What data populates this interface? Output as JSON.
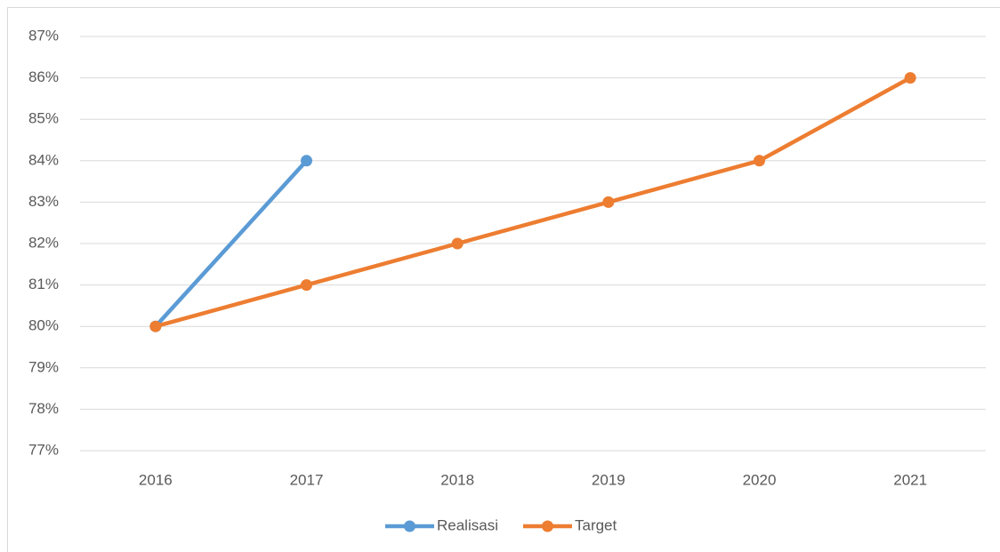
{
  "chart_data": {
    "type": "line",
    "categories": [
      "2016",
      "2017",
      "2018",
      "2019",
      "2020",
      "2021"
    ],
    "series": [
      {
        "name": "Realisasi",
        "color": "#5b9bd5",
        "values": [
          80,
          84,
          null,
          null,
          null,
          null
        ]
      },
      {
        "name": "Target",
        "color": "#ed7d31",
        "values": [
          80,
          81,
          82,
          83,
          84,
          86
        ]
      }
    ],
    "ylim": [
      77,
      87
    ],
    "yticks": [
      {
        "value": 77,
        "label": "77%"
      },
      {
        "value": 78,
        "label": "78%"
      },
      {
        "value": 79,
        "label": "79%"
      },
      {
        "value": 80,
        "label": "80%"
      },
      {
        "value": 81,
        "label": "81%"
      },
      {
        "value": 82,
        "label": "82%"
      },
      {
        "value": 83,
        "label": "83%"
      },
      {
        "value": 84,
        "label": "84%"
      },
      {
        "value": 85,
        "label": "85%"
      },
      {
        "value": 86,
        "label": "86%"
      },
      {
        "value": 87,
        "label": "87%"
      }
    ],
    "grid": true,
    "legend": "bottom"
  }
}
